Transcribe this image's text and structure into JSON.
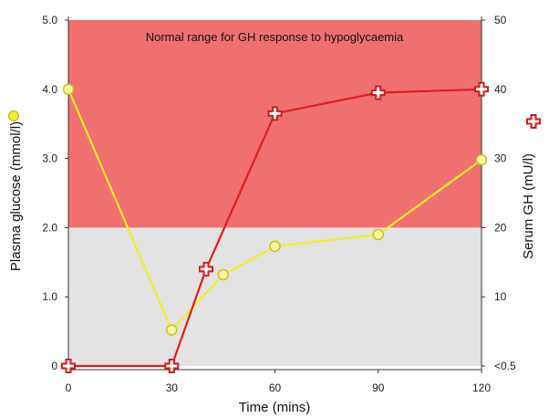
{
  "chart_data": {
    "type": "line",
    "annotation": "Normal range for GH response to hypoglycaemia",
    "xlabel": "Time (mins)",
    "ylabel_left": "Plasma glucose (mmol/l)",
    "ylabel_right": "Serum GH (mU/l)",
    "x_ticks": [
      "0",
      "30",
      "60",
      "90",
      "120"
    ],
    "y_left_ticks": [
      "0",
      "1.0",
      "2.0",
      "3.0",
      "4.0",
      "5.0"
    ],
    "y_right_ticks": [
      "<0.5",
      "10",
      "20",
      "30",
      "40",
      "50"
    ],
    "xlim": [
      0,
      120
    ],
    "ylim_left": [
      0,
      5
    ],
    "ylim_right": [
      0,
      50
    ],
    "bands": [
      {
        "axis": "right",
        "from": 0,
        "to": 20,
        "color": "#e3e3e3"
      },
      {
        "axis": "right",
        "from": 20,
        "to": 50,
        "color": "#f07070"
      }
    ],
    "series": [
      {
        "axis": "left",
        "color": "#f2ee2e",
        "marker": "circle",
        "x": [
          0,
          30,
          45,
          60,
          90,
          120
        ],
        "y": [
          4.0,
          0.52,
          1.32,
          1.73,
          1.9,
          2.98
        ]
      },
      {
        "axis": "right",
        "color": "#e01c1c",
        "marker": "plus",
        "x": [
          0,
          30,
          40,
          60,
          90,
          120
        ],
        "y": [
          0,
          0,
          14,
          36.5,
          39.5,
          40
        ]
      }
    ]
  }
}
